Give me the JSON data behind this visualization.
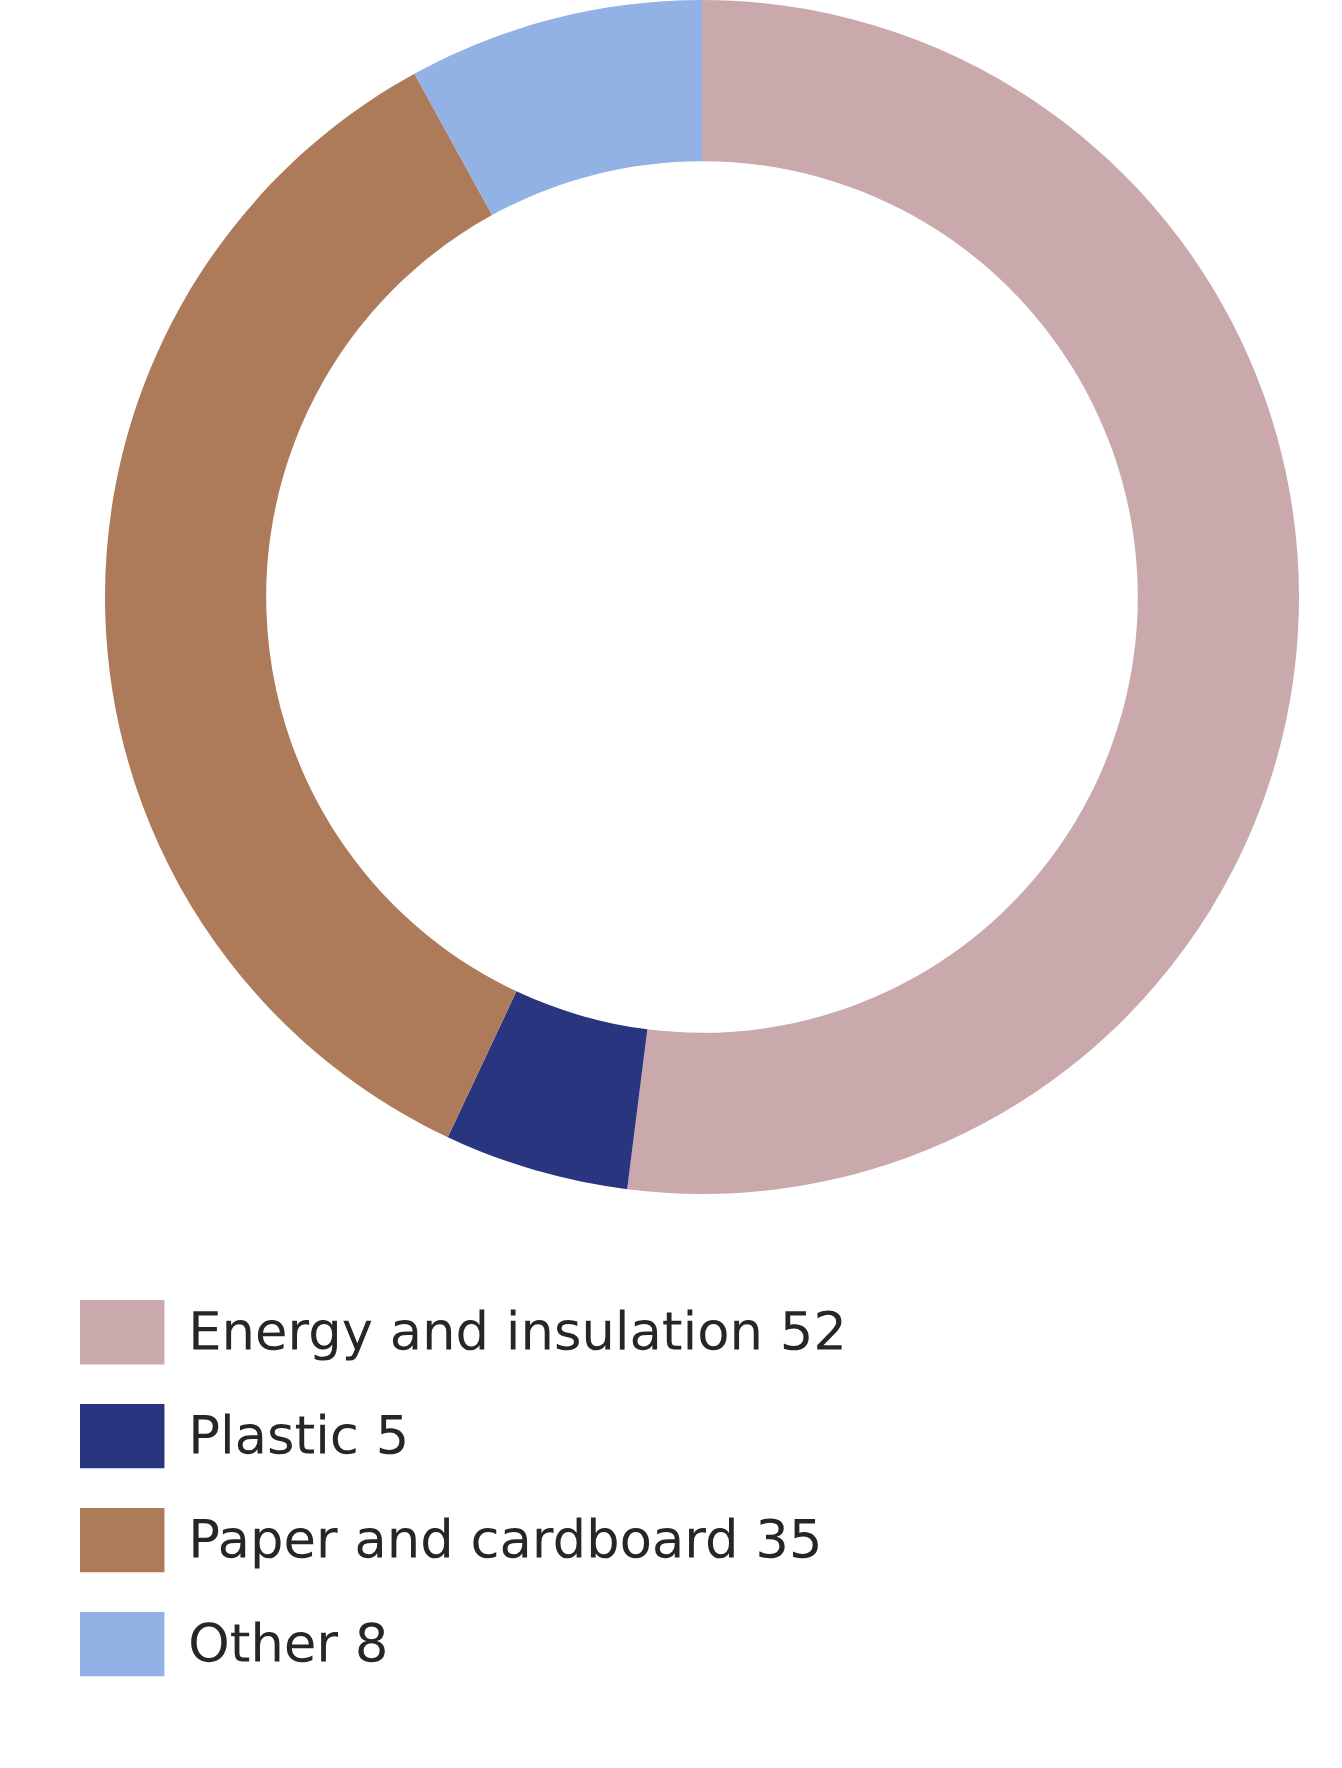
{
  "chart_data": {
    "type": "donut",
    "categories": [
      "Energy and insulation",
      "Plastic",
      "Paper and cardboard",
      "Other"
    ],
    "values": [
      52,
      5,
      35,
      8
    ],
    "value_labels": [
      "52",
      "5",
      "35",
      "8"
    ],
    "colors": [
      "#c9a9ac",
      "#2a3580",
      "#ad7a5a",
      "#92b2e6"
    ],
    "legend": "bottom left"
  }
}
